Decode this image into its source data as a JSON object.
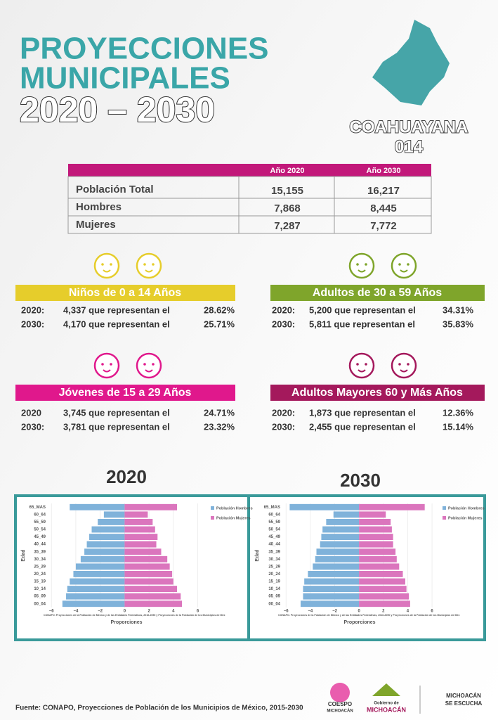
{
  "header": {
    "title_lines": [
      "PROYECCIONES",
      "MUNICIPALES",
      "2020 – 2030"
    ],
    "municipality": "COAHUAYANA",
    "code": "014"
  },
  "table": {
    "columns": [
      "Año 2020",
      "Año 2030"
    ],
    "rows": [
      [
        "Población Total",
        "15,155",
        "16,217"
      ],
      [
        "Hombres",
        "7,868",
        "8,445"
      ],
      [
        "Mujeres",
        "7,287",
        "7,772"
      ]
    ]
  },
  "groups": [
    {
      "title": "Niños de 0 a 14 Años",
      "color": "#e6cd2b",
      "rows": [
        [
          "2020:",
          "4,337 que representan el",
          "28.62%"
        ],
        [
          "2030:",
          "4,170 que representan el",
          "25.71%"
        ]
      ]
    },
    {
      "title": "Adultos de 30 a 59 Años",
      "color": "#7fa52b",
      "rows": [
        [
          "2020:",
          "5,200 que representan el",
          "34.31%"
        ],
        [
          "2030:",
          "5,811 que representan el",
          "35.83%"
        ]
      ]
    },
    {
      "title": "Jóvenes de 15 a 29 Años",
      "color": "#e0188c",
      "rows": [
        [
          "2020",
          "3,745 que representan el",
          "24.71%"
        ],
        [
          "2030:",
          "3,781 que representan el",
          "23.32%"
        ]
      ]
    },
    {
      "title": "Adultos Mayores  60 y Más Años",
      "color": "#a4195c",
      "rows": [
        [
          "2020:",
          "1,873 que representan el",
          "12.36%"
        ],
        [
          "2030:",
          "2,455 que representan el",
          "15.14%"
        ]
      ]
    }
  ],
  "chart_data": [
    {
      "type": "bar",
      "orientation": "horizontal",
      "title": "2020",
      "xlabel": "Proporciones",
      "ylabel": "Edad",
      "note": "CONAPO. Proyecciones de la Población de México y de las Entidades Federativas, 2016-2050 y Proyecciones de la Población de los Municipios de Méx",
      "categories": [
        "00_04",
        "05_09",
        "10_14",
        "15_19",
        "20_24",
        "25_29",
        "30_34",
        "35_39",
        "40_44",
        "45_49",
        "50_54",
        "55_59",
        "60_64",
        "65_MAS"
      ],
      "series": [
        {
          "name": "Población Hombres",
          "color": "#7fb2da",
          "values": [
            -5.1,
            -4.8,
            -4.7,
            -4.5,
            -4.2,
            -4.0,
            -3.6,
            -3.3,
            -3.1,
            -2.9,
            -2.7,
            -2.2,
            -1.7,
            -4.5
          ]
        },
        {
          "name": "Población Mujeres",
          "color": "#db75bd",
          "values": [
            4.7,
            4.6,
            4.3,
            4.0,
            3.9,
            3.7,
            3.5,
            3.0,
            2.6,
            2.7,
            2.5,
            2.3,
            1.9,
            4.3
          ]
        }
      ],
      "xlim": [
        -6.3,
        6.6
      ],
      "xticks": [
        {
          "value": -6,
          "label": "−6"
        },
        {
          "value": -4,
          "label": "−4"
        },
        {
          "value": -2,
          "label": "−2"
        },
        0,
        2,
        4,
        6
      ],
      "grid": true
    },
    {
      "type": "bar",
      "orientation": "horizontal",
      "title": "2030",
      "xlabel": "Proporciones",
      "ylabel": "Edad",
      "note": "CONAPO. Proyecciones de la Población de México y de las Entidades Federativas, 2016-2050 y Proyecciones de la Población de los Municipios de Méx",
      "categories": [
        "00_04",
        "05_09",
        "10_14",
        "15_19",
        "20_24",
        "25_29",
        "30_34",
        "35_39",
        "40_44",
        "45_49",
        "50_54",
        "55_59",
        "60_64",
        "65_MAS"
      ],
      "series": [
        {
          "name": "Población Hombres",
          "color": "#7fb2da",
          "values": [
            -4.8,
            -4.6,
            -4.6,
            -4.5,
            -4.2,
            -3.8,
            -3.6,
            -3.5,
            -3.2,
            -3.1,
            -3.0,
            -2.7,
            -2.1,
            -5.7
          ]
        },
        {
          "name": "Población Mujeres",
          "color": "#db75bd",
          "values": [
            4.2,
            4.1,
            3.9,
            3.8,
            3.6,
            3.3,
            3.1,
            3.0,
            2.8,
            2.8,
            2.7,
            2.6,
            2.2,
            5.4
          ]
        }
      ],
      "xlim": [
        -6.3,
        6.4
      ],
      "xticks": [
        {
          "value": -6,
          "label": "−6"
        },
        {
          "value": -4,
          "label": "−4"
        },
        {
          "value": -2,
          "label": "−2"
        },
        0,
        2,
        4,
        6
      ],
      "grid": true
    }
  ],
  "source": "Fuente: CONAPO, Proyecciones de Población de los Municipios de México, 2015-2030",
  "logos": [
    "COESPO",
    "MICHOACÁN",
    "Gobierno de",
    "MICHOACÁN",
    "MICHOACÁN",
    "SE ESCUCHA"
  ]
}
